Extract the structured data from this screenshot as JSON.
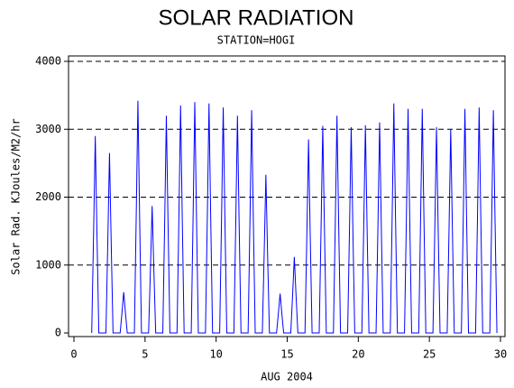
{
  "chart_data": {
    "type": "line",
    "title": "SOLAR RADIATION",
    "subtitle": "STATION=HOGI",
    "x_label": "AUG 2004",
    "y_label": "Solar Rad. KJoules/M2/hr",
    "xlim": [
      0,
      30
    ],
    "xticks": [
      0,
      5,
      10,
      15,
      20,
      25,
      30
    ],
    "ylim": [
      0,
      4000
    ],
    "yticks": [
      0,
      1000,
      2000,
      3000,
      4000
    ],
    "grid": true,
    "x": [
      1.25,
      1.38,
      1.5,
      1.62,
      1.75,
      2.25,
      2.38,
      2.5,
      2.62,
      2.75,
      3.25,
      3.38,
      3.5,
      3.62,
      3.75,
      4.25,
      4.38,
      4.5,
      4.62,
      4.75,
      5.25,
      5.38,
      5.5,
      5.62,
      5.75,
      6.25,
      6.38,
      6.5,
      6.62,
      6.75,
      7.25,
      7.38,
      7.5,
      7.62,
      7.75,
      8.25,
      8.38,
      8.5,
      8.62,
      8.75,
      9.25,
      9.38,
      9.5,
      9.62,
      9.75,
      10.25,
      10.38,
      10.5,
      10.62,
      10.75,
      11.25,
      11.38,
      11.5,
      11.62,
      11.75,
      12.25,
      12.38,
      12.5,
      12.62,
      12.75,
      13.25,
      13.38,
      13.5,
      13.62,
      13.75,
      14.25,
      14.38,
      14.5,
      14.62,
      14.75,
      15.25,
      15.38,
      15.5,
      15.62,
      15.75,
      16.25,
      16.38,
      16.5,
      16.62,
      16.75,
      17.25,
      17.38,
      17.5,
      17.62,
      17.75,
      18.25,
      18.38,
      18.5,
      18.62,
      18.75,
      19.25,
      19.38,
      19.5,
      19.62,
      19.75,
      20.25,
      20.38,
      20.5,
      20.62,
      20.75,
      21.25,
      21.38,
      21.5,
      21.62,
      21.75,
      22.25,
      22.38,
      22.5,
      22.62,
      22.75,
      23.25,
      23.38,
      23.5,
      23.62,
      23.75,
      24.25,
      24.38,
      24.5,
      24.62,
      24.75,
      25.25,
      25.38,
      25.5,
      25.62,
      25.75,
      26.25,
      26.38,
      26.5,
      26.62,
      26.75,
      27.25,
      27.38,
      27.5,
      27.62,
      27.75,
      28.25,
      28.38,
      28.5,
      28.62,
      28.75,
      29.25,
      29.38,
      29.5,
      29.62,
      29.75
    ],
    "series": [
      {
        "name": "Solar Rad.",
        "color": "#0000ff",
        "values": [
          0,
          1450,
          2900,
          1450,
          0,
          0,
          1325,
          2650,
          1325,
          0,
          0,
          300,
          600,
          300,
          0,
          0,
          1710,
          3420,
          1710,
          0,
          0,
          935,
          1870,
          935,
          0,
          0,
          1600,
          3200,
          1600,
          0,
          0,
          1675,
          3350,
          1675,
          0,
          0,
          1700,
          3400,
          1700,
          0,
          0,
          1690,
          3380,
          1690,
          0,
          0,
          1660,
          3320,
          1660,
          0,
          0,
          1600,
          3200,
          1600,
          0,
          0,
          1640,
          3280,
          1640,
          0,
          0,
          1165,
          2330,
          1165,
          0,
          0,
          290,
          580,
          290,
          0,
          0,
          560,
          1120,
          560,
          0,
          0,
          1425,
          2850,
          1425,
          0,
          0,
          1525,
          3050,
          1525,
          0,
          0,
          1600,
          3200,
          1600,
          0,
          0,
          1515,
          3030,
          1515,
          0,
          0,
          1530,
          3060,
          1530,
          0,
          0,
          1550,
          3100,
          1550,
          0,
          0,
          1690,
          3380,
          1690,
          0,
          0,
          1650,
          3300,
          1650,
          0,
          0,
          1650,
          3300,
          1650,
          0,
          0,
          1515,
          3030,
          1515,
          0,
          0,
          1500,
          3000,
          1500,
          0,
          0,
          1650,
          3300,
          1650,
          0,
          0,
          1660,
          3320,
          1660,
          0,
          0,
          1640,
          3280,
          1640,
          0
        ]
      }
    ]
  }
}
